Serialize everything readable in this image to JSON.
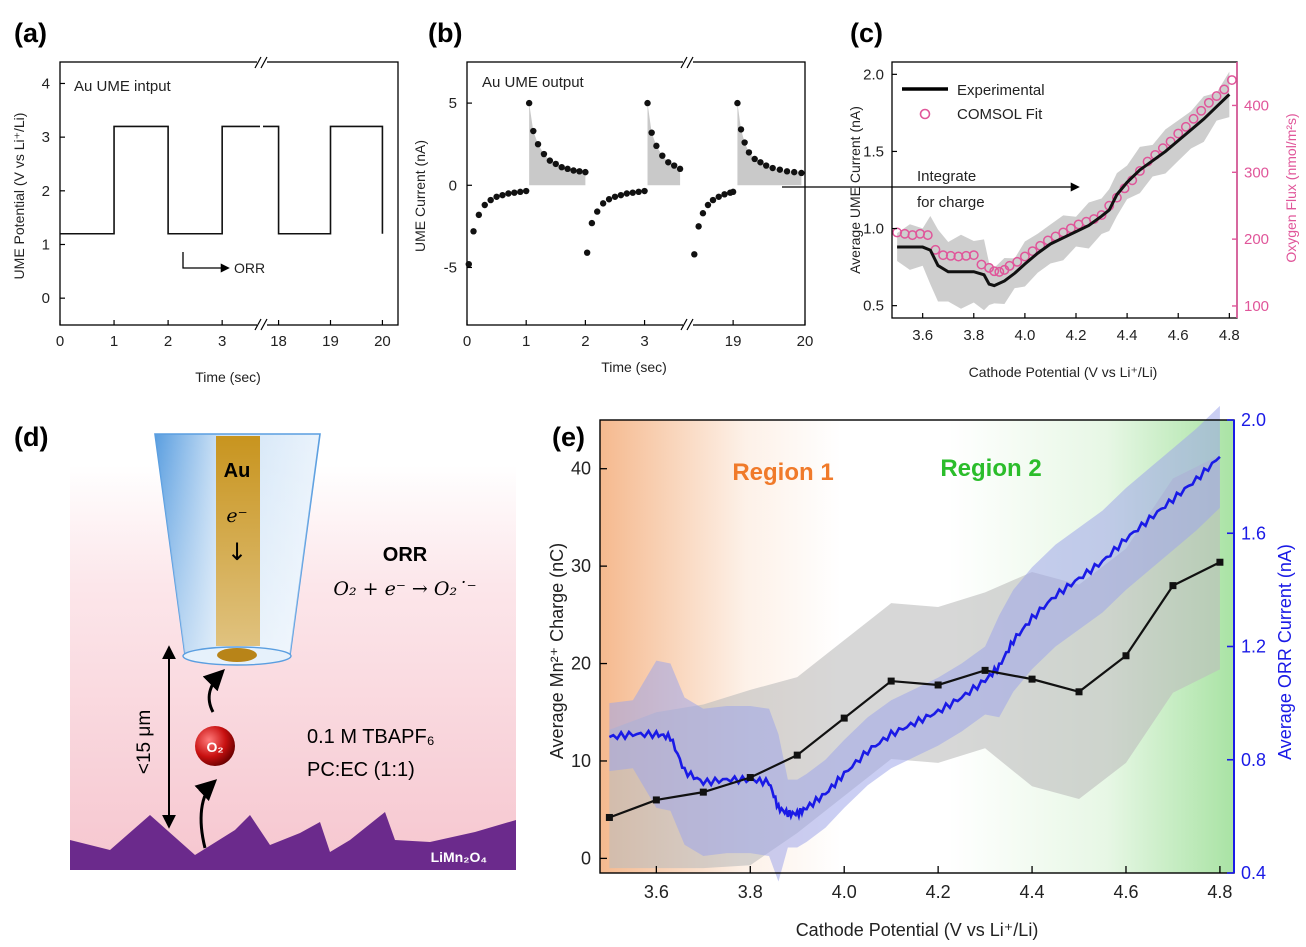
{
  "panels": {
    "a": {
      "letter": "(a)",
      "annotation": "Au UME intput",
      "orr_label": "ORR",
      "ylabel": "UME Potential (V vs Li⁺/Li)",
      "xlabel": "Time (sec)",
      "ytick_labels": [
        "0",
        "1",
        "2",
        "3",
        "4"
      ],
      "xtick_labels": [
        "0",
        "1",
        "2",
        "3",
        "18",
        "19",
        "20"
      ]
    },
    "b": {
      "letter": "(b)",
      "annotation": "Au UME output",
      "ylabel": "UME Current (nA)",
      "xlabel": "Time (sec)",
      "ytick_labels": [
        "5",
        "0",
        "-5"
      ],
      "xtick_labels": [
        "0",
        "1",
        "2",
        "3",
        "19",
        "20"
      ]
    },
    "c": {
      "letter": "(c)",
      "ylabel": "Average UME Current (nA)",
      "ylabel_right": "Oxygen Flux (nmol/m²s)",
      "xlabel": "Cathode Potential (V vs Li⁺/Li)",
      "legend": [
        "Experimental",
        "COMSOL Fit"
      ],
      "arrow_label_1": "Integrate",
      "arrow_label_2": "for charge",
      "ytick_labels": [
        "0.5",
        "1.0",
        "1.5",
        "2.0"
      ],
      "ytick_right_labels": [
        "100",
        "200",
        "300",
        "400"
      ],
      "xtick_labels": [
        "3.6",
        "3.8",
        "4.0",
        "4.2",
        "4.4",
        "4.6",
        "4.8"
      ]
    },
    "d": {
      "letter": "(d)",
      "electrode_label": "Au",
      "electron_label": "e⁻",
      "reaction_title": "ORR",
      "reaction_eq": "O₂ + e⁻ → O₂˙⁻",
      "distance_label": "<15 μm",
      "molecule_label": "O₂",
      "electrolyte_1": "0.1 M TBAPF₆",
      "electrolyte_2": "PC:EC (1:1)",
      "cathode_label": "LiMn₂O₄"
    },
    "e": {
      "letter": "(e)",
      "region1": "Region 1",
      "region2": "Region 2",
      "ylabel": "Average Mn²⁺ Charge (nC)",
      "ylabel_right": "Average ORR Current (nA)",
      "xlabel": "Cathode Potential (V vs Li⁺/Li)",
      "ytick_labels": [
        "0",
        "10",
        "20",
        "30",
        "40"
      ],
      "ytick_right_labels": [
        "0.4",
        "0.8",
        "1.2",
        "1.6",
        "2.0"
      ],
      "xtick_labels": [
        "3.6",
        "3.8",
        "4.0",
        "4.2",
        "4.4",
        "4.6",
        "4.8"
      ]
    }
  },
  "colors": {
    "black": "#111111",
    "gray_band": "#bdbdbd",
    "pink": "#e0569a",
    "blue": "#1a1ae6",
    "blue_band": "#9fa5ea",
    "region1": "#f07a2a",
    "region2": "#2bbd2b",
    "purple": "#6b2a8c",
    "gold": "#c8941e"
  },
  "chart_data": [
    {
      "panel": "a",
      "type": "line",
      "xlabel": "Time (sec)",
      "ylabel": "UME Potential (V vs Li⁺/Li)",
      "xlim_left": [
        0,
        3.7
      ],
      "xlim_right": [
        17.7,
        20.3
      ],
      "ylim": [
        -0.5,
        4.4
      ],
      "series": [
        {
          "x": [
            0,
            1,
            1,
            2,
            2,
            3,
            3,
            3.7
          ],
          "y": [
            1.2,
            1.2,
            3.2,
            3.2,
            1.2,
            1.2,
            3.2,
            3.2
          ]
        },
        {
          "x": [
            17.7,
            18,
            18,
            19,
            19,
            20,
            20
          ],
          "y": [
            3.2,
            3.2,
            1.2,
            1.2,
            3.2,
            3.2,
            1.2
          ]
        }
      ]
    },
    {
      "panel": "b",
      "type": "scatter",
      "xlabel": "Time (sec)",
      "ylabel": "UME Current (nA)",
      "xlim_left": [
        0,
        3.7
      ],
      "xlim_right": [
        18.4,
        20
      ],
      "ylim": [
        -8.5,
        7.5
      ],
      "pulses": [
        {
          "ox": [
            0.03,
            0.11,
            0.2,
            0.3,
            0.4,
            0.5,
            0.6,
            0.7,
            0.8,
            0.9,
            1.0
          ],
          "oy": [
            -4.8,
            -2.8,
            -1.8,
            -1.2,
            -0.9,
            -0.7,
            -0.6,
            -0.5,
            -0.45,
            -0.4,
            -0.35
          ],
          "rx": [
            1.05,
            1.12,
            1.2,
            1.3,
            1.4,
            1.5,
            1.6,
            1.7,
            1.8,
            1.9,
            2.0
          ],
          "ry": [
            5.0,
            3.3,
            2.5,
            1.9,
            1.5,
            1.3,
            1.1,
            1.0,
            0.9,
            0.85,
            0.8
          ]
        },
        {
          "ox": [
            2.03,
            2.11,
            2.2,
            2.3,
            2.4,
            2.5,
            2.6,
            2.7,
            2.8,
            2.9,
            3.0
          ],
          "oy": [
            -4.1,
            -2.3,
            -1.6,
            -1.1,
            -0.85,
            -0.7,
            -0.6,
            -0.5,
            -0.45,
            -0.4,
            -0.35
          ],
          "rx": [
            3.05,
            3.12,
            3.2,
            3.3,
            3.4,
            3.5,
            3.6
          ],
          "ry": [
            5.0,
            3.2,
            2.4,
            1.8,
            1.4,
            1.2,
            1.0
          ]
        }
      ],
      "pulse_right": {
        "ox": [
          18.46,
          18.52,
          18.58,
          18.65,
          18.72,
          18.8,
          18.88,
          18.96,
          19.0
        ],
        "oy": [
          -4.2,
          -2.5,
          -1.7,
          -1.2,
          -0.9,
          -0.7,
          -0.55,
          -0.45,
          -0.4
        ],
        "rx": [
          19.06,
          19.11,
          19.16,
          19.22,
          19.3,
          19.38,
          19.46,
          19.55,
          19.65,
          19.75,
          19.85,
          19.95
        ],
        "ry": [
          5.0,
          3.4,
          2.6,
          2.0,
          1.6,
          1.4,
          1.2,
          1.05,
          0.95,
          0.85,
          0.8,
          0.75
        ]
      }
    },
    {
      "panel": "c",
      "type": "line",
      "xlabel": "Cathode Potential (V vs Li⁺/Li)",
      "ylabel": "Average UME Current (nA)",
      "ylabel_right": "Oxygen Flux (nmol/m²s)",
      "xlim": [
        3.48,
        4.83
      ],
      "ylim": [
        0.42,
        2.08
      ],
      "ylim_right": [
        82,
        465
      ],
      "series": [
        {
          "name": "Experimental",
          "x": [
            3.5,
            3.55,
            3.6,
            3.63,
            3.66,
            3.7,
            3.75,
            3.8,
            3.84,
            3.86,
            3.88,
            3.92,
            3.96,
            4.0,
            4.05,
            4.1,
            4.15,
            4.2,
            4.25,
            4.3,
            4.33,
            4.36,
            4.4,
            4.45,
            4.5,
            4.55,
            4.6,
            4.65,
            4.7,
            4.75,
            4.8
          ],
          "y": [
            0.88,
            0.88,
            0.88,
            0.86,
            0.76,
            0.72,
            0.72,
            0.72,
            0.7,
            0.64,
            0.63,
            0.66,
            0.71,
            0.77,
            0.84,
            0.9,
            0.94,
            0.98,
            1.02,
            1.08,
            1.12,
            1.22,
            1.3,
            1.38,
            1.44,
            1.5,
            1.57,
            1.64,
            1.71,
            1.79,
            1.87
          ]
        },
        {
          "name": "COMSOL Fit",
          "x": [
            3.5,
            3.53,
            3.56,
            3.59,
            3.62,
            3.65,
            3.68,
            3.71,
            3.74,
            3.77,
            3.8,
            3.83,
            3.86,
            3.88,
            3.9,
            3.92,
            3.94,
            3.97,
            4.0,
            4.03,
            4.06,
            4.09,
            4.12,
            4.15,
            4.18,
            4.21,
            4.24,
            4.27,
            4.3,
            4.33,
            4.36,
            4.39,
            4.42,
            4.45,
            4.48,
            4.51,
            4.54,
            4.57,
            4.6,
            4.63,
            4.66,
            4.69,
            4.72,
            4.75,
            4.78,
            4.81
          ],
          "y": [
            210,
            208,
            206,
            208,
            206,
            184,
            176,
            175,
            174,
            175,
            176,
            162,
            157,
            152,
            151,
            154,
            160,
            166,
            174,
            182,
            190,
            198,
            204,
            210,
            216,
            222,
            226,
            230,
            236,
            250,
            262,
            276,
            288,
            302,
            316,
            326,
            336,
            346,
            358,
            368,
            380,
            392,
            404,
            414,
            424,
            438
          ]
        }
      ]
    },
    {
      "panel": "e",
      "type": "line",
      "xlabel": "Cathode Potential (V vs Li⁺/Li)",
      "ylabel": "Average Mn²⁺ Charge (nC)",
      "ylabel_right": "Average ORR Current (nA)",
      "xlim": [
        3.48,
        4.83
      ],
      "ylim": [
        -1.5,
        45
      ],
      "ylim_right": [
        0.4,
        2.0
      ],
      "series": [
        {
          "name": "Mn charge",
          "x": [
            3.5,
            3.6,
            3.7,
            3.8,
            3.9,
            4.0,
            4.1,
            4.2,
            4.3,
            4.4,
            4.5,
            4.6,
            4.7,
            4.8
          ],
          "y": [
            4.2,
            6.0,
            6.8,
            8.3,
            10.6,
            14.4,
            18.2,
            17.8,
            19.3,
            18.4,
            17.1,
            20.8,
            28.0,
            30.4
          ]
        },
        {
          "name": "ORR current",
          "x": [
            3.5,
            3.55,
            3.6,
            3.63,
            3.66,
            3.7,
            3.75,
            3.8,
            3.84,
            3.86,
            3.88,
            3.9,
            3.92,
            3.96,
            4.0,
            4.05,
            4.1,
            4.15,
            4.2,
            4.25,
            4.3,
            4.33,
            4.36,
            4.4,
            4.45,
            4.5,
            4.55,
            4.6,
            4.65,
            4.7,
            4.75,
            4.8
          ],
          "y": [
            0.88,
            0.89,
            0.89,
            0.88,
            0.76,
            0.72,
            0.73,
            0.73,
            0.72,
            0.63,
            0.61,
            0.61,
            0.63,
            0.68,
            0.75,
            0.83,
            0.89,
            0.93,
            0.97,
            1.02,
            1.08,
            1.13,
            1.22,
            1.3,
            1.38,
            1.44,
            1.5,
            1.58,
            1.65,
            1.72,
            1.79,
            1.87
          ]
        }
      ]
    }
  ]
}
